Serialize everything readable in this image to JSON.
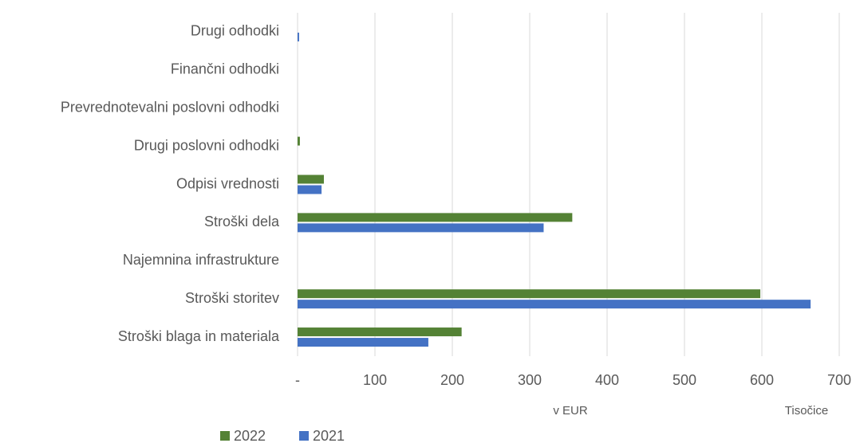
{
  "chart_data": {
    "type": "barh",
    "categories": [
      "Drugi odhodki",
      "Finančni odhodki",
      "Prevrednotevalni poslovni odhodki",
      "Drugi poslovni odhodki",
      "Odpisi vrednosti",
      "Stroški dela",
      "Najemnina infrastrukture",
      "Stroški storitev",
      "Stroški blaga in materiala"
    ],
    "series": [
      {
        "name": "2022",
        "color": "#548235",
        "values": [
          0,
          0,
          0,
          3,
          34,
          355,
          0,
          598,
          212
        ]
      },
      {
        "name": "2021",
        "color": "#4472c4",
        "values": [
          2,
          0,
          0,
          0,
          31,
          318,
          0,
          663,
          169
        ]
      }
    ],
    "xlim": [
      0,
      700
    ],
    "xticks": [
      {
        "value": 0,
        "label": "-"
      },
      100,
      200,
      300,
      400,
      500,
      600,
      700
    ],
    "annotations": [
      "v EUR",
      "Tisočice"
    ],
    "grid": true,
    "legend": "bottom"
  }
}
